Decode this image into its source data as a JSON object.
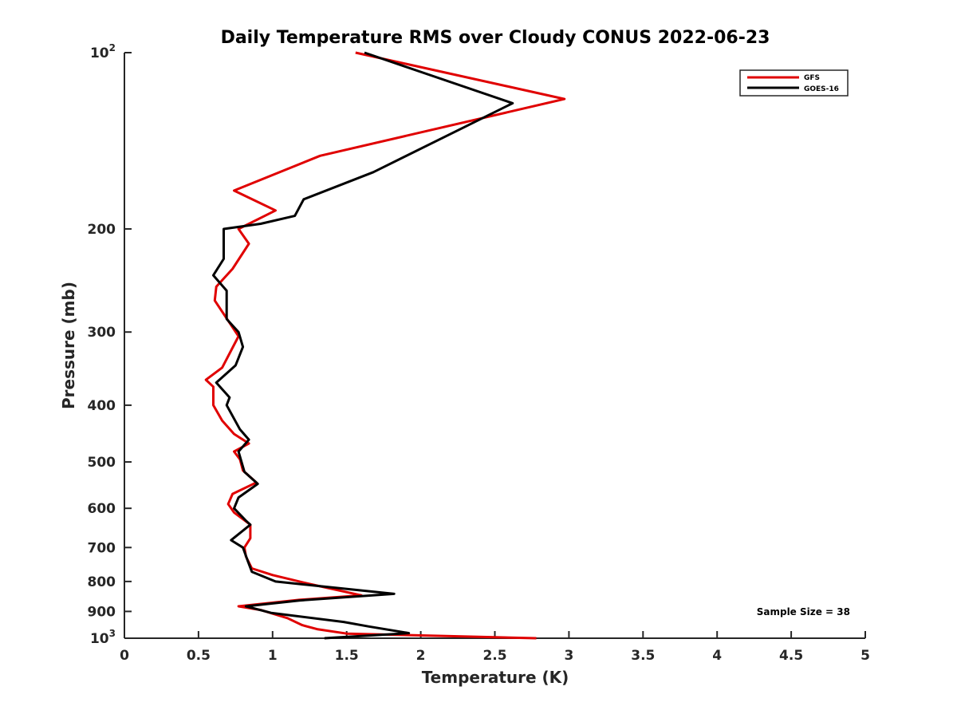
{
  "chart_data": {
    "type": "line",
    "title": "Daily Temperature RMS over Cloudy CONUS 2022-06-23",
    "xlabel": "Temperature (K)",
    "ylabel": "Pressure (mb)",
    "xlim": [
      0,
      5
    ],
    "ylim": [
      100,
      1000
    ],
    "yscale": "log",
    "y_reversed": true,
    "grid": false,
    "legend_position": "top-right",
    "x_ticks": [
      0,
      0.5,
      1,
      1.5,
      2,
      2.5,
      3,
      3.5,
      4,
      4.5,
      5
    ],
    "x_tick_labels": [
      "0",
      "0.5",
      "1",
      "1.5",
      "2",
      "2.5",
      "3",
      "3.5",
      "4",
      "4.5",
      "5"
    ],
    "y_ticks": [
      {
        "value": 100,
        "base": "10",
        "exp": "2"
      },
      {
        "value": 200,
        "label": "200"
      },
      {
        "value": 300,
        "label": "300"
      },
      {
        "value": 400,
        "label": "400"
      },
      {
        "value": 500,
        "label": "500"
      },
      {
        "value": 600,
        "label": "600"
      },
      {
        "value": 700,
        "label": "700"
      },
      {
        "value": 800,
        "label": "800"
      },
      {
        "value": 900,
        "label": "900"
      },
      {
        "value": 1000,
        "base": "10",
        "exp": "3"
      }
    ],
    "annotation": "Sample Size = 38",
    "series": [
      {
        "name": "GFS",
        "color": "#e00000",
        "points": [
          [
            1.56,
            100
          ],
          [
            2.97,
            120
          ],
          [
            1.32,
            150
          ],
          [
            0.74,
            172
          ],
          [
            1.02,
            186
          ],
          [
            0.77,
            200
          ],
          [
            0.84,
            212
          ],
          [
            0.73,
            234
          ],
          [
            0.62,
            251
          ],
          [
            0.61,
            265
          ],
          [
            0.77,
            305
          ],
          [
            0.66,
            345
          ],
          [
            0.55,
            362
          ],
          [
            0.6,
            372
          ],
          [
            0.6,
            400
          ],
          [
            0.66,
            425
          ],
          [
            0.74,
            448
          ],
          [
            0.84,
            465
          ],
          [
            0.74,
            480
          ],
          [
            0.78,
            495
          ],
          [
            0.8,
            517
          ],
          [
            0.89,
            542
          ],
          [
            0.73,
            567
          ],
          [
            0.7,
            590
          ],
          [
            0.74,
            610
          ],
          [
            0.85,
            640
          ],
          [
            0.85,
            675
          ],
          [
            0.81,
            700
          ],
          [
            0.82,
            725
          ],
          [
            0.86,
            760
          ],
          [
            1.0,
            780
          ],
          [
            1.25,
            808
          ],
          [
            1.6,
            845
          ],
          [
            1.18,
            860
          ],
          [
            0.77,
            882
          ],
          [
            0.92,
            895
          ],
          [
            1.1,
            924
          ],
          [
            1.2,
            950
          ],
          [
            1.3,
            965
          ],
          [
            1.5,
            982
          ],
          [
            2.78,
            1000
          ]
        ]
      },
      {
        "name": "GOES-16",
        "color": "#000000",
        "points": [
          [
            1.62,
            100
          ],
          [
            2.62,
            122
          ],
          [
            1.68,
            160
          ],
          [
            1.21,
            178
          ],
          [
            1.15,
            190
          ],
          [
            0.92,
            196
          ],
          [
            0.67,
            200
          ],
          [
            0.67,
            225
          ],
          [
            0.6,
            240
          ],
          [
            0.69,
            255
          ],
          [
            0.69,
            285
          ],
          [
            0.77,
            300
          ],
          [
            0.8,
            318
          ],
          [
            0.75,
            342
          ],
          [
            0.62,
            366
          ],
          [
            0.71,
            388
          ],
          [
            0.69,
            400
          ],
          [
            0.78,
            440
          ],
          [
            0.84,
            458
          ],
          [
            0.77,
            480
          ],
          [
            0.81,
            520
          ],
          [
            0.9,
            545
          ],
          [
            0.77,
            575
          ],
          [
            0.74,
            600
          ],
          [
            0.82,
            630
          ],
          [
            0.85,
            640
          ],
          [
            0.72,
            680
          ],
          [
            0.8,
            700
          ],
          [
            0.83,
            735
          ],
          [
            0.86,
            770
          ],
          [
            1.02,
            800
          ],
          [
            1.82,
            840
          ],
          [
            1.18,
            862
          ],
          [
            0.82,
            882
          ],
          [
            0.99,
            905
          ],
          [
            1.48,
            938
          ],
          [
            1.65,
            955
          ],
          [
            1.92,
            980
          ],
          [
            1.35,
            1000
          ]
        ]
      }
    ]
  }
}
